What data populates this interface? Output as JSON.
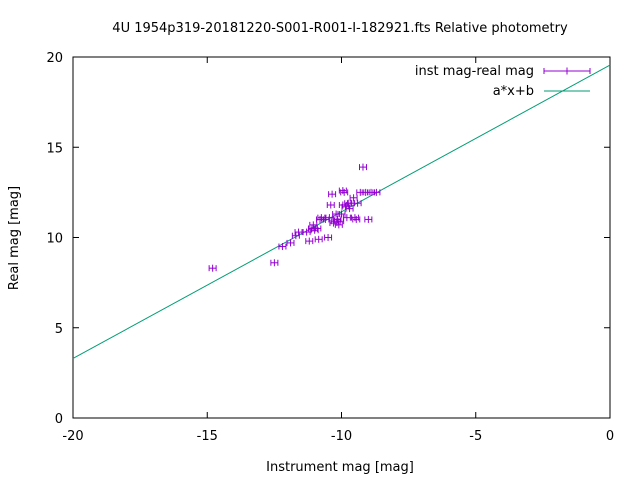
{
  "chart_data": {
    "type": "scatter",
    "title": "4U 1954p319-20181220-S001-R001-I-182921.fts Relative photometry",
    "xlabel": "Instrument mag [mag]",
    "ylabel": "Real mag [mag]",
    "xlim": [
      -20,
      0
    ],
    "ylim": [
      0,
      20
    ],
    "x_ticks": [
      -20,
      -15,
      -10,
      -5,
      0
    ],
    "y_ticks": [
      0,
      5,
      10,
      15,
      20
    ],
    "x_tick_labels": [
      "-20",
      "-15",
      "-10",
      "-5",
      "0"
    ],
    "y_tick_labels": [
      "0",
      "5",
      "10",
      "15",
      "20"
    ],
    "grid": false,
    "legend_position": "top-right",
    "series": [
      {
        "name": "inst mag-real mag",
        "kind": "errorbars",
        "color": "#9400d3",
        "xerr": 0.13,
        "points": [
          [
            -14.8,
            8.3
          ],
          [
            -12.5,
            8.6
          ],
          [
            -12.2,
            9.5
          ],
          [
            -11.9,
            9.7
          ],
          [
            -11.7,
            10.1
          ],
          [
            -11.6,
            10.3
          ],
          [
            -11.3,
            10.3
          ],
          [
            -11.2,
            9.8
          ],
          [
            -11.1,
            10.5
          ],
          [
            -11.05,
            10.7
          ],
          [
            -11.0,
            10.4
          ],
          [
            -10.9,
            10.5
          ],
          [
            -10.85,
            9.9
          ],
          [
            -10.8,
            11.0
          ],
          [
            -10.75,
            11.1
          ],
          [
            -10.6,
            11.0
          ],
          [
            -10.5,
            10.0
          ],
          [
            -10.45,
            11.1
          ],
          [
            -10.4,
            11.8
          ],
          [
            -10.35,
            12.4
          ],
          [
            -10.3,
            10.8
          ],
          [
            -10.25,
            10.9
          ],
          [
            -10.2,
            11.3
          ],
          [
            -10.15,
            11.0
          ],
          [
            -10.1,
            10.7
          ],
          [
            -10.05,
            10.9
          ],
          [
            -10.0,
            11.3
          ],
          [
            -9.95,
            11.8
          ],
          [
            -9.9,
            12.5
          ],
          [
            -9.95,
            12.6
          ],
          [
            -9.85,
            11.7
          ],
          [
            -9.8,
            11.1
          ],
          [
            -9.75,
            11.9
          ],
          [
            -9.7,
            11.6
          ],
          [
            -9.65,
            11.9
          ],
          [
            -9.55,
            12.2
          ],
          [
            -9.5,
            11.1
          ],
          [
            -9.45,
            11.0
          ],
          [
            -9.4,
            11.9
          ],
          [
            -9.3,
            12.5
          ],
          [
            -9.2,
            13.9
          ],
          [
            -9.1,
            12.5
          ],
          [
            -9.0,
            11.0
          ],
          [
            -8.9,
            12.5
          ],
          [
            -8.7,
            12.5
          ]
        ]
      },
      {
        "name": "a*x+b",
        "kind": "line",
        "color": "#009e73",
        "line": [
          [
            -20,
            3.3
          ],
          [
            0,
            19.55
          ]
        ]
      }
    ]
  }
}
